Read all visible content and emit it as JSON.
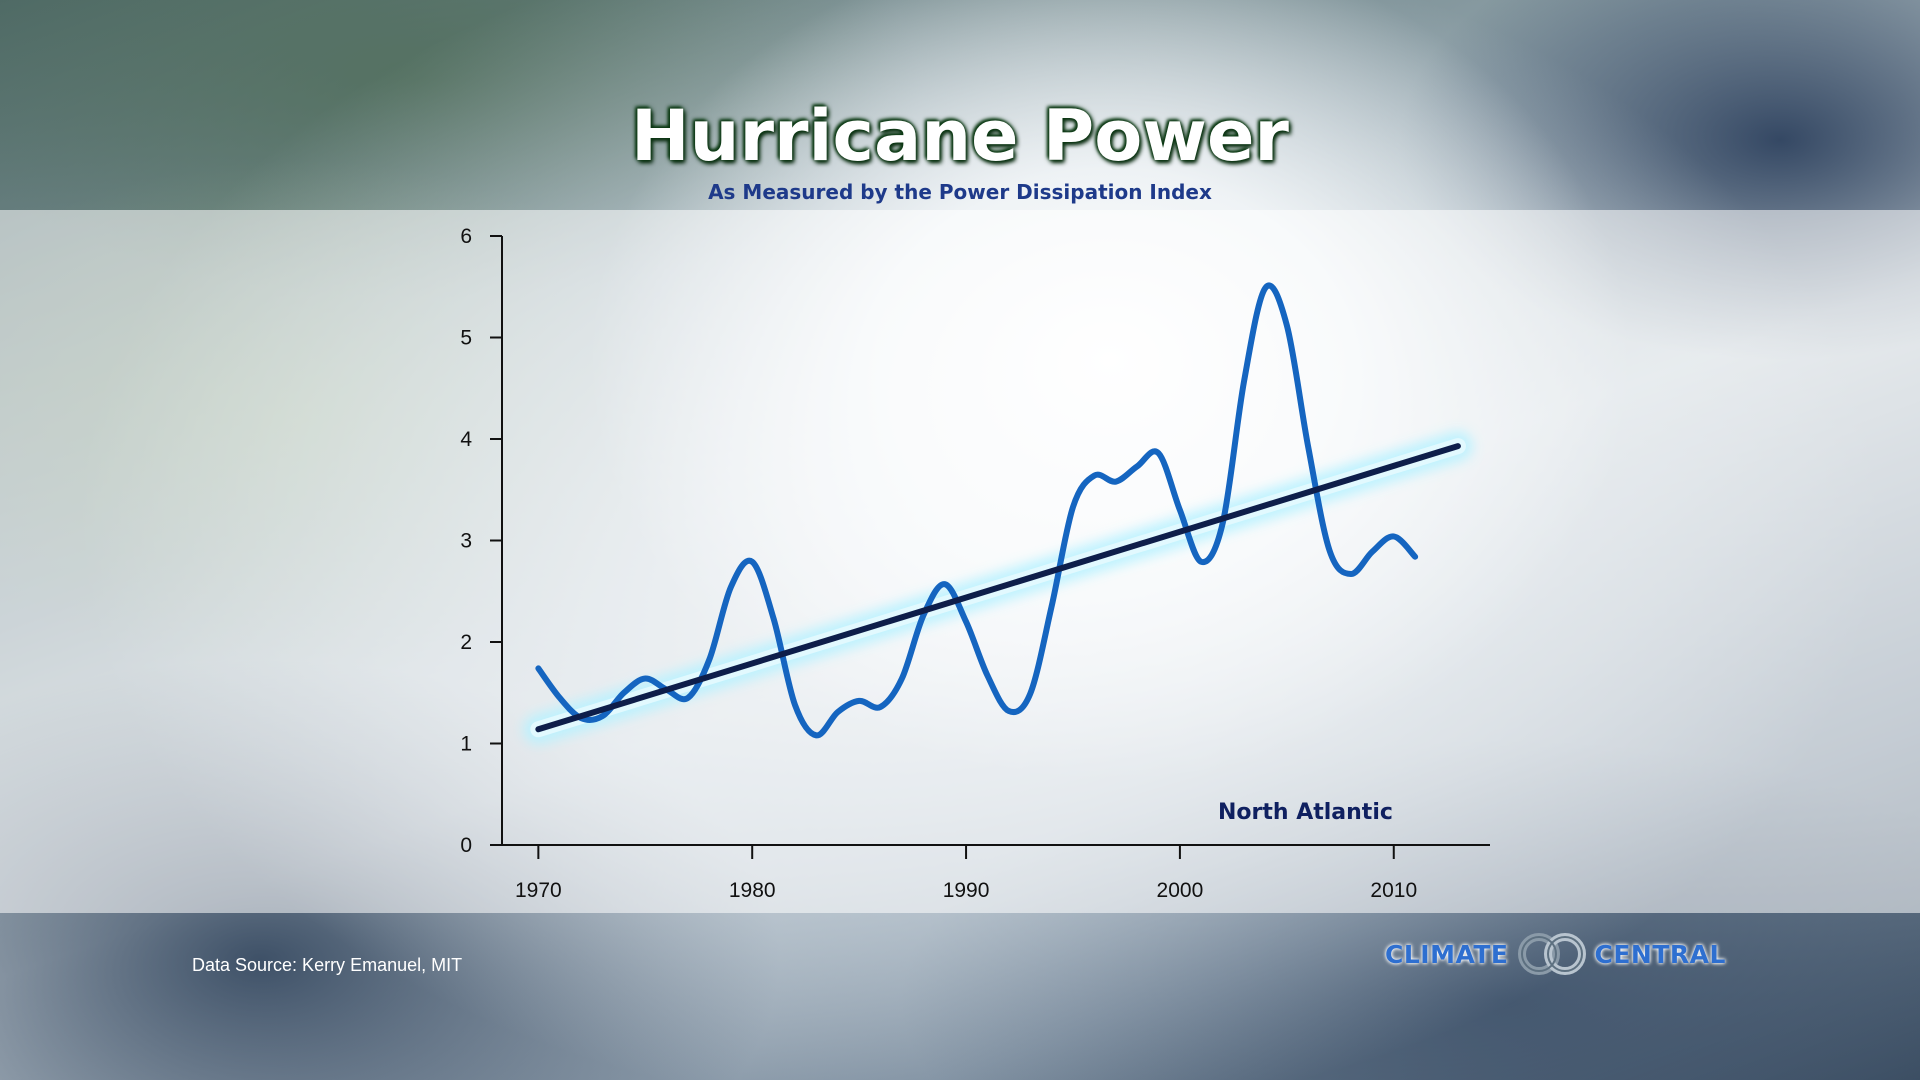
{
  "header": {
    "title": "Hurricane Power",
    "subtitle": "As Measured by the Power Dissipation Index"
  },
  "footer": {
    "source": "Data Source: Kerry Emanuel, MIT",
    "logo_left": "CLIMATE",
    "logo_right": "CENTRAL"
  },
  "colors": {
    "series": "#1565c0",
    "trend": "#0e1e4a",
    "trend_glow": "#b9f2ff",
    "title_outline": "#0c3a14",
    "logo": "#2e6fd0"
  },
  "chart_data": {
    "type": "line",
    "title": "Hurricane Power",
    "subtitle": "As Measured by the Power Dissipation Index",
    "xlabel": "",
    "ylabel": "",
    "region_label": "North Atlantic",
    "xlim": [
      1968.3,
      2014.5
    ],
    "ylim": [
      0,
      6
    ],
    "xticks": [
      1970,
      1980,
      1990,
      2000,
      2010
    ],
    "yticks": [
      0,
      1,
      2,
      3,
      4,
      5,
      6
    ],
    "grid": false,
    "series": [
      {
        "x": [
          1970,
          1971,
          1972,
          1973,
          1974,
          1975,
          1976,
          1977,
          1978,
          1979,
          1980,
          1981,
          1982,
          1983,
          1984,
          1985,
          1986,
          1987,
          1988,
          1989,
          1990,
          1991,
          1992,
          1993,
          1994,
          1995,
          1996,
          1997,
          1998,
          1999,
          2000,
          2001,
          2002,
          2003,
          2004,
          2005,
          2006,
          2007,
          2008,
          2009,
          2010,
          2011
        ],
        "values": [
          1.74,
          1.45,
          1.25,
          1.27,
          1.5,
          1.64,
          1.53,
          1.45,
          1.83,
          2.54,
          2.79,
          2.23,
          1.38,
          1.08,
          1.31,
          1.42,
          1.36,
          1.64,
          2.26,
          2.57,
          2.2,
          1.67,
          1.32,
          1.49,
          2.35,
          3.33,
          3.64,
          3.58,
          3.73,
          3.86,
          3.3,
          2.79,
          3.17,
          4.57,
          5.49,
          5.12,
          3.92,
          2.9,
          2.67,
          2.89,
          3.04,
          2.84
        ]
      },
      {
        "name": "trend",
        "x": [
          1970,
          2013
        ],
        "values": [
          1.14,
          3.93
        ]
      }
    ]
  }
}
